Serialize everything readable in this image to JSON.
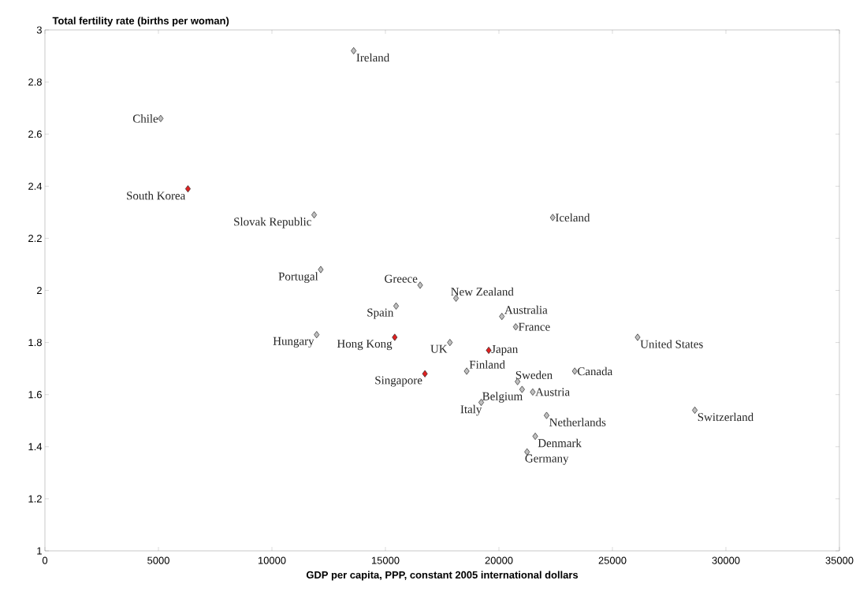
{
  "chart_data": {
    "type": "scatter",
    "xlabel": "GDP per capita, PPP, constant 2005 international dollars",
    "ylabel": "Total fertility rate (births per woman)",
    "xlim": [
      0,
      35000
    ],
    "ylim": [
      1,
      3
    ],
    "xticks": [
      0,
      5000,
      10000,
      15000,
      20000,
      25000,
      30000,
      35000
    ],
    "yticks": [
      1,
      1.2,
      1.4,
      1.6,
      1.8,
      2,
      2.2,
      2.4,
      2.6,
      2.8,
      3
    ],
    "marker": "diamond",
    "series": [
      {
        "color": "#c0c0c0",
        "x": [
          13600,
          5100,
          11860,
          12150,
          16530,
          15470,
          11970,
          18110,
          20130,
          20740,
          17840,
          18580,
          20820,
          21020,
          21490,
          19220,
          22100,
          21600,
          21240,
          23340,
          22370,
          26110,
          28630
        ],
        "values": [
          2.92,
          2.66,
          2.29,
          2.08,
          2.02,
          1.94,
          1.83,
          1.97,
          1.9,
          1.86,
          1.8,
          1.69,
          1.65,
          1.62,
          1.61,
          1.57,
          1.52,
          1.44,
          1.38,
          1.69,
          2.28,
          1.82,
          1.54
        ]
      },
      {
        "color": "#e02020",
        "x": [
          6300,
          15410,
          19550,
          16740
        ],
        "values": [
          2.39,
          1.82,
          1.77,
          1.68
        ]
      }
    ],
    "annotations": [
      {
        "text": "Ireland",
        "x": 13600,
        "y": 2.92
      },
      {
        "text": "Chile",
        "x": 5100,
        "y": 2.66
      },
      {
        "text": "Slovak Republic",
        "x": 11860,
        "y": 2.29
      },
      {
        "text": "Portugal",
        "x": 12150,
        "y": 2.08
      },
      {
        "text": "Greece",
        "x": 16530,
        "y": 2.02
      },
      {
        "text": "Spain",
        "x": 15470,
        "y": 1.94
      },
      {
        "text": "Hungary",
        "x": 11970,
        "y": 1.83
      },
      {
        "text": "New Zealand",
        "x": 18110,
        "y": 1.97
      },
      {
        "text": "Australia",
        "x": 20130,
        "y": 1.9
      },
      {
        "text": "France",
        "x": 20740,
        "y": 1.86
      },
      {
        "text": "UK",
        "x": 17840,
        "y": 1.8
      },
      {
        "text": "Finland",
        "x": 18580,
        "y": 1.69
      },
      {
        "text": "Sweden",
        "x": 20820,
        "y": 1.65
      },
      {
        "text": "Belgium",
        "x": 21020,
        "y": 1.62
      },
      {
        "text": "Austria",
        "x": 21490,
        "y": 1.61
      },
      {
        "text": "Italy",
        "x": 19220,
        "y": 1.57
      },
      {
        "text": "Netherlands",
        "x": 22100,
        "y": 1.52
      },
      {
        "text": "Denmark",
        "x": 21600,
        "y": 1.44
      },
      {
        "text": "Germany",
        "x": 21240,
        "y": 1.38
      },
      {
        "text": "Canada",
        "x": 23340,
        "y": 1.69
      },
      {
        "text": "Iceland",
        "x": 22370,
        "y": 2.28
      },
      {
        "text": "United States",
        "x": 26110,
        "y": 1.82
      },
      {
        "text": "Switzerland",
        "x": 28630,
        "y": 1.54
      },
      {
        "text": "South Korea",
        "x": 6300,
        "y": 2.39
      },
      {
        "text": "Hong Kong",
        "x": 15410,
        "y": 1.82
      },
      {
        "text": "Japan",
        "x": 19550,
        "y": 1.77
      },
      {
        "text": "Singapore",
        "x": 16740,
        "y": 1.68
      }
    ]
  }
}
